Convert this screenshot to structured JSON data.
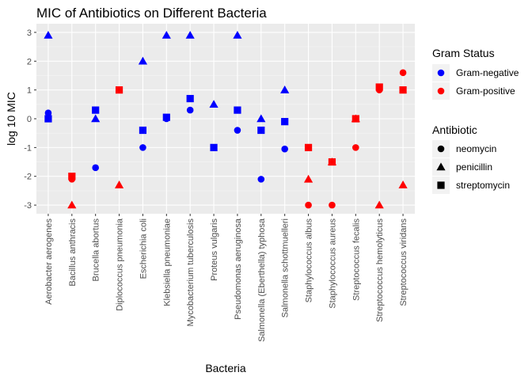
{
  "chart_data": {
    "type": "scatter",
    "title": "MIC of Antibiotics on Different Bacteria",
    "xlabel": "Bacteria",
    "ylabel": "log 10 MIC",
    "ylim": [
      -3.3,
      3.3
    ],
    "yticks": [
      -3,
      -2,
      -1,
      0,
      1,
      2,
      3
    ],
    "grid": true,
    "legend_position": "right",
    "categories": [
      "Aerobacter aerogenes",
      "Bacillus anthracis",
      "Brucella abortus",
      "Diplococcus pneumonia",
      "Escherichia coli",
      "Klebsiella pneumoniae",
      "Mycobacterium tuberculosis",
      "Proteus vulgaris",
      "Pseudomonas aeruginosa",
      "Salmonella (Eberthella) typhosa",
      "Salmonella schottmuelleri",
      "Staphylococcus albus",
      "Staphylococcus aureus",
      "Streptococcus fecalis",
      "Streptococcus hemolyticus",
      "Streptococcus viridans"
    ],
    "gram_status": [
      "negative",
      "positive",
      "negative",
      "positive",
      "negative",
      "negative",
      "negative",
      "negative",
      "negative",
      "negative",
      "negative",
      "positive",
      "positive",
      "positive",
      "positive",
      "positive"
    ],
    "series": [
      {
        "name": "neomycin",
        "shape": "circle",
        "values": [
          0.2,
          -2.1,
          -1.7,
          1.0,
          -1.0,
          0.0,
          0.3,
          -1.0,
          -0.4,
          -2.1,
          -1.05,
          -3.0,
          -3.0,
          -1.0,
          1.0,
          1.6
        ]
      },
      {
        "name": "penicillin",
        "shape": "triangle",
        "values": [
          2.9,
          -3.0,
          0.0,
          -2.3,
          2.0,
          2.9,
          2.9,
          0.5,
          2.9,
          0.0,
          1.0,
          -2.1,
          -1.5,
          0.0,
          -3.0,
          -2.3
        ]
      },
      {
        "name": "streptomycin",
        "shape": "square",
        "values": [
          0.0,
          -2.0,
          0.3,
          1.0,
          -0.4,
          0.05,
          0.7,
          -1.0,
          0.3,
          -0.4,
          -0.1,
          -1.0,
          -1.5,
          0.0,
          1.1,
          1.0
        ]
      }
    ],
    "legend": {
      "color_title": "Gram Status",
      "color_entries": [
        {
          "key": "negative",
          "label": "Gram-negative",
          "color": "#0000ff"
        },
        {
          "key": "positive",
          "label": "Gram-positive",
          "color": "#ff0000"
        }
      ],
      "shape_title": "Antibiotic",
      "shape_entries": [
        {
          "label": "neomycin",
          "shape": "circle"
        },
        {
          "label": "penicillin",
          "shape": "triangle"
        },
        {
          "label": "streptomycin",
          "shape": "square"
        }
      ]
    },
    "colors": {
      "panel": "#ebebeb",
      "grid_major": "#ffffff",
      "grid_minor": "#f5f5f5"
    }
  }
}
